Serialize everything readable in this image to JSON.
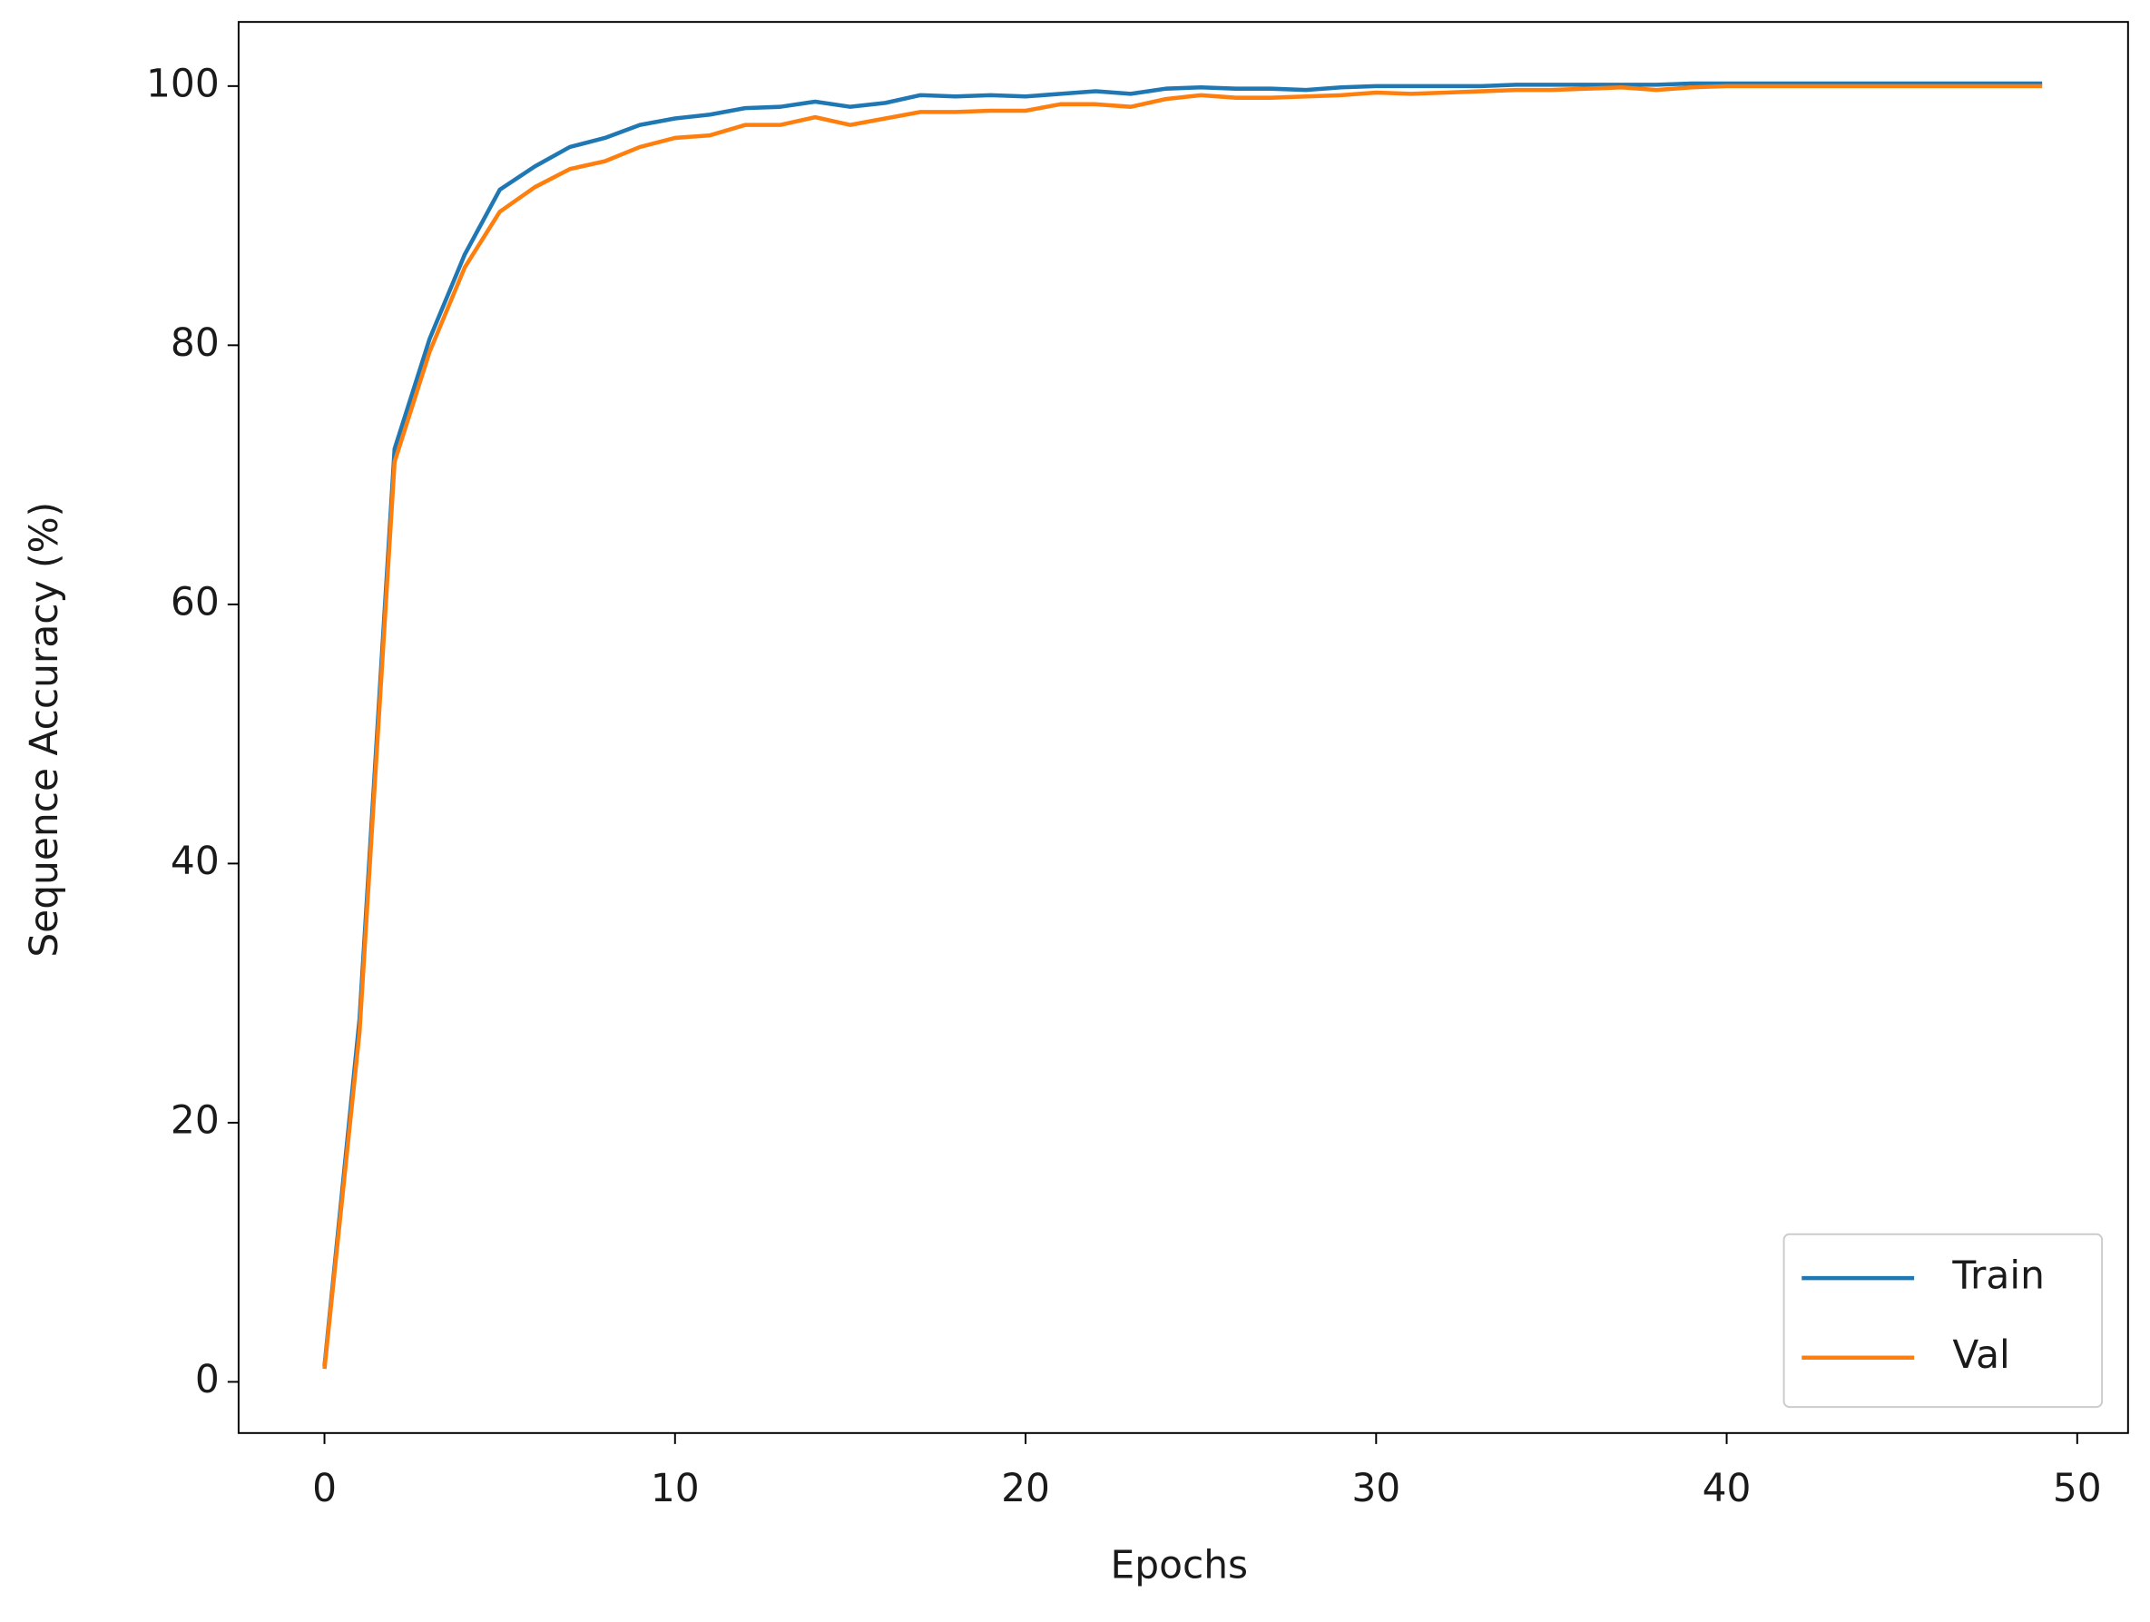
{
  "chart_data": {
    "type": "line",
    "x_label": "Epochs",
    "y_label": "Sequence Accuracy (%)",
    "x": [
      0,
      1,
      2,
      3,
      4,
      5,
      6,
      7,
      8,
      9,
      10,
      11,
      12,
      13,
      14,
      15,
      16,
      17,
      18,
      19,
      20,
      21,
      22,
      23,
      24,
      25,
      26,
      27,
      28,
      29,
      30,
      31,
      32,
      33,
      34,
      35,
      36,
      37,
      38,
      39,
      40,
      41,
      42,
      43,
      44,
      45,
      46,
      47,
      48,
      49
    ],
    "series": [
      {
        "name": "Train",
        "color": "#1f77b4",
        "values": [
          1.2,
          28,
          72,
          80.5,
          87,
          92,
          93.8,
          95.3,
          96,
          97,
          97.5,
          97.8,
          98.3,
          98.4,
          98.8,
          98.4,
          98.7,
          99.3,
          99.2,
          99.3,
          99.2,
          99.4,
          99.6,
          99.4,
          99.8,
          99.9,
          99.8,
          99.8,
          99.7,
          99.9,
          100,
          100,
          100,
          100,
          100.1,
          100.1,
          100.1,
          100.1,
          100.1,
          100.2,
          100.2,
          100.2,
          100.2,
          100.2,
          100.2,
          100.2,
          100.2,
          100.2,
          100.2,
          100.2
        ]
      },
      {
        "name": "Val",
        "color": "#ff7f0e",
        "values": [
          1.0,
          27,
          71,
          79.5,
          86,
          90.3,
          92.2,
          93.6,
          94.2,
          95.3,
          96,
          96.2,
          97,
          97,
          97.6,
          97,
          97.5,
          98,
          98,
          98.1,
          98.1,
          98.6,
          98.6,
          98.4,
          99,
          99.3,
          99.1,
          99.1,
          99.2,
          99.3,
          99.5,
          99.4,
          99.5,
          99.6,
          99.7,
          99.7,
          99.8,
          99.9,
          99.7,
          99.9,
          100,
          100,
          100,
          100,
          100,
          100,
          100,
          100,
          100,
          100
        ]
      }
    ],
    "xlim": [
      -2.45,
      51.45
    ],
    "xticks": [
      0,
      10,
      20,
      30,
      40,
      50
    ],
    "ylim": [
      -3.95,
      104.95
    ],
    "yticks": [
      0,
      20,
      40,
      60,
      80,
      100
    ],
    "legend": "lower right"
  }
}
